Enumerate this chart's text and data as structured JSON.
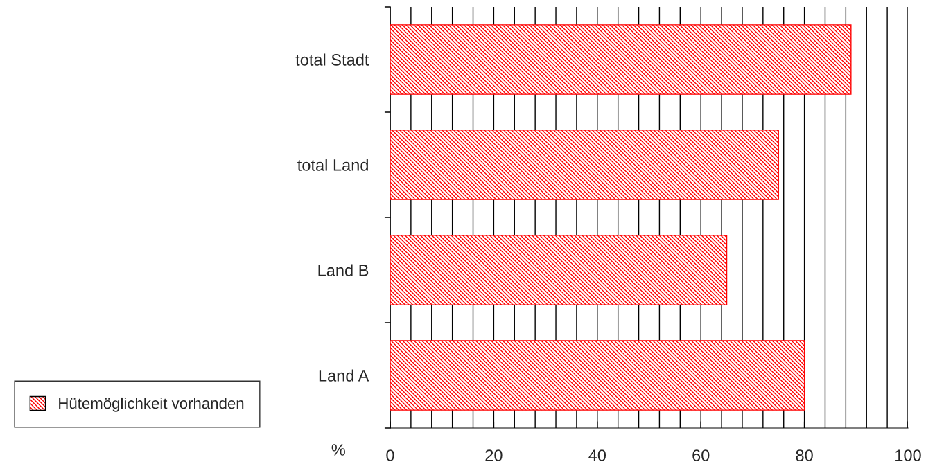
{
  "chart_data": {
    "type": "bar",
    "orientation": "horizontal",
    "xlabel": "%",
    "categories": [
      "total Stadt",
      "total Land",
      "Land B",
      "Land A"
    ],
    "series": [
      {
        "name": "Hütemöglichkeit vorhanden",
        "color": "#ff0000",
        "values": [
          89,
          75,
          65,
          80
        ]
      }
    ],
    "xlim": [
      0,
      100
    ],
    "xticks": [
      0,
      {
        "value": 4,
        "label": null
      },
      {
        "value": 8,
        "label": null
      },
      {
        "value": 12,
        "label": null
      },
      {
        "value": 16,
        "label": null
      },
      20,
      {
        "value": 24,
        "label": null
      },
      {
        "value": 28,
        "label": null
      },
      {
        "value": 32,
        "label": null
      },
      {
        "value": 36,
        "label": null
      },
      40,
      {
        "value": 44,
        "label": null
      },
      {
        "value": 48,
        "label": null
      },
      {
        "value": 52,
        "label": null
      },
      {
        "value": 56,
        "label": null
      },
      60,
      {
        "value": 64,
        "label": null
      },
      {
        "value": 68,
        "label": null
      },
      {
        "value": 72,
        "label": null
      },
      {
        "value": 76,
        "label": null
      },
      80,
      {
        "value": 84,
        "label": null
      },
      {
        "value": 88,
        "label": null
      },
      {
        "value": 92,
        "label": null
      },
      {
        "value": 96,
        "label": null
      },
      100
    ],
    "grid": "x",
    "legend": "bottom left"
  }
}
